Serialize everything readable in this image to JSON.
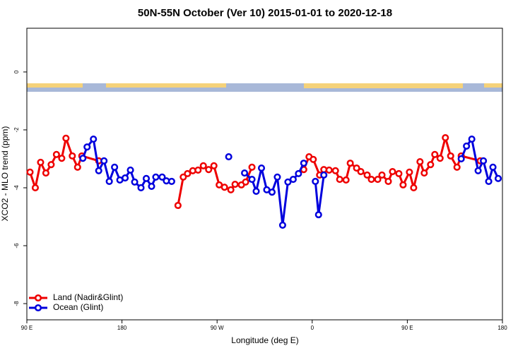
{
  "chart_data": {
    "type": "line",
    "title": "50N-55N October (Ver 10)   2015-01-01 to 2020-12-18",
    "x_label": "Longitude (deg E)",
    "y_label": "XCO2 - MLO trend (ppm)",
    "xlim": [
      90,
      540
    ],
    "xticks": [
      {
        "value": 90,
        "label": "90 E"
      },
      {
        "value": 180,
        "label": "180"
      },
      {
        "value": 270,
        "label": "90 W"
      },
      {
        "value": 360,
        "label": "0"
      },
      {
        "value": 450,
        "label": "90 E"
      },
      {
        "value": 540,
        "label": "180"
      }
    ],
    "ylim": [
      -8.56,
      1.51
    ],
    "yticks": [
      0,
      -2,
      -4,
      -6,
      -8
    ],
    "legend": "bottom-left",
    "series": [
      {
        "name": "Land (Nadir&Glint)",
        "color": "#ee0000",
        "x": [
          93,
          98,
          103,
          108,
          113,
          118,
          123,
          127,
          133,
          138,
          142,
          158,
          180,
          233,
          238,
          242,
          247,
          252,
          257,
          262,
          267,
          272,
          277,
          283,
          287,
          293,
          297,
          303,
          330,
          352,
          357,
          361,
          367,
          371,
          376,
          382,
          386,
          392,
          396,
          402,
          406,
          412,
          416,
          422,
          426,
          432,
          436,
          442,
          446,
          452,
          456,
          462,
          466,
          472,
          476,
          481,
          486,
          491,
          497,
          501,
          519
        ],
        "values": [
          -3.46,
          -4.0,
          -3.12,
          -3.49,
          -3.2,
          -2.85,
          -2.98,
          -2.29,
          -2.9,
          -3.29,
          -2.9,
          -3.07,
          null,
          -4.61,
          -3.63,
          -3.51,
          -3.41,
          -3.39,
          -3.24,
          -3.37,
          -3.24,
          -3.9,
          -3.98,
          -4.07,
          -3.88,
          -3.9,
          -3.8,
          -3.29,
          null,
          -3.37,
          -2.93,
          -3.02,
          -3.56,
          -3.37,
          -3.39,
          -3.41,
          -3.71,
          -3.73,
          -3.15,
          -3.32,
          -3.44,
          -3.56,
          -3.71,
          -3.71,
          -3.56,
          -3.78,
          -3.44,
          -3.51,
          -3.9,
          -3.46,
          -4.0,
          -3.1,
          -3.49,
          -3.2,
          -2.85,
          -2.98,
          -2.27,
          -2.9,
          -3.29,
          -2.9,
          -3.07
        ]
      },
      {
        "name": "Ocean (Glint)",
        "color": "#0000dd",
        "x": [
          143,
          147,
          153,
          158,
          163,
          168,
          173,
          178,
          183,
          188,
          192,
          198,
          203,
          208,
          212,
          218,
          222,
          227,
          235,
          281,
          300,
          296,
          303,
          307,
          312,
          317,
          322,
          327,
          332,
          337,
          342,
          347,
          352,
          355,
          363,
          366,
          371,
          400,
          501,
          506,
          511,
          517,
          522,
          527,
          531,
          536
        ],
        "values": [
          -2.98,
          -2.59,
          -2.32,
          -3.41,
          -3.07,
          -3.78,
          -3.29,
          -3.73,
          -3.66,
          -3.39,
          -3.8,
          -4.0,
          -3.68,
          -3.95,
          -3.63,
          -3.63,
          -3.76,
          -3.78,
          null,
          -2.93,
          null,
          -3.49,
          -3.71,
          -4.12,
          -3.32,
          -4.07,
          -4.15,
          -3.63,
          -5.29,
          -3.8,
          -3.71,
          -3.51,
          -3.15,
          null,
          -3.78,
          -4.93,
          -3.56,
          null,
          -3.0,
          -2.56,
          -2.32,
          -3.41,
          -3.07,
          -3.78,
          -3.29,
          -3.68
        ]
      }
    ]
  }
}
